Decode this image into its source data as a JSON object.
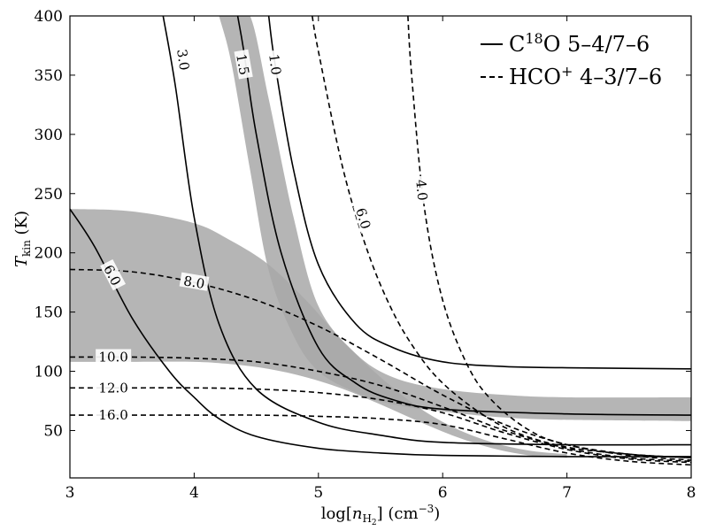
{
  "chart_data": {
    "type": "line",
    "xlabel": "log[n_H2] (cm^-3)",
    "xlabel_parts": {
      "pre": "log[",
      "var": "n",
      "sub": "H",
      "subsub": "2",
      "post": "] (cm",
      "sup": "−3",
      "end": ")"
    },
    "ylabel": "T_kin (K)",
    "ylabel_parts": {
      "var": "T",
      "sub": "kin",
      "post": " (K)"
    },
    "xlim": [
      3,
      8
    ],
    "ylim": [
      10,
      400
    ],
    "x_ticks": [
      "3",
      "4",
      "5",
      "6",
      "7",
      "8"
    ],
    "y_ticks": [
      "50",
      "100",
      "150",
      "200",
      "250",
      "300",
      "350",
      "400"
    ],
    "grid": false,
    "legend_position": "top-right",
    "legend": [
      {
        "style": "solid",
        "parts": {
          "pre": "C",
          "sup": "18",
          "post": "O 5–4/7–6"
        }
      },
      {
        "style": "dashed",
        "parts": {
          "pre": "HCO",
          "sup": "+",
          "post": " 4–3/7–6"
        }
      }
    ],
    "colors": {
      "line": "#000000",
      "band": "#a8a8a8"
    },
    "series": [
      {
        "label": "3.0",
        "style": "solid",
        "x": [
          3.75,
          3.85,
          4.0,
          4.2,
          4.5,
          5.0,
          5.5,
          6.0,
          7.0,
          8.0
        ],
        "y": [
          400,
          340,
          230,
          140,
          85,
          57,
          46,
          40,
          38,
          38
        ]
      },
      {
        "label": "1.5",
        "style": "solid",
        "x": [
          4.35,
          4.4,
          4.5,
          4.7,
          5.0,
          5.3,
          5.6,
          6.0,
          7.0,
          8.0
        ],
        "y": [
          400,
          370,
          300,
          200,
          120,
          90,
          76,
          68,
          64,
          63
        ]
      },
      {
        "label": "1.0",
        "style": "solid",
        "x": [
          4.6,
          4.65,
          4.8,
          5.0,
          5.3,
          5.6,
          6.0,
          6.5,
          7.0,
          8.0
        ],
        "y": [
          400,
          360,
          270,
          190,
          140,
          120,
          108,
          104,
          103,
          102
        ]
      },
      {
        "label": "6.0",
        "style": "solid",
        "x": [
          3.0,
          3.2,
          3.5,
          3.8,
          4.0,
          4.2,
          4.5,
          5.0,
          5.5,
          6.0,
          7.0,
          8.0
        ],
        "y": [
          237,
          205,
          145,
          100,
          78,
          60,
          45,
          35,
          31,
          29,
          28,
          28
        ]
      },
      {
        "label": "6.0",
        "style": "dashed",
        "x": [
          4.95,
          5.0,
          5.2,
          5.4,
          5.6,
          5.8,
          6.0,
          6.3,
          6.6,
          7.0,
          7.5,
          8.0
        ],
        "y": [
          400,
          370,
          270,
          200,
          150,
          115,
          90,
          65,
          48,
          36,
          30,
          27
        ]
      },
      {
        "label": "4.0",
        "style": "dashed",
        "x": [
          5.72,
          5.75,
          5.85,
          6.0,
          6.2,
          6.4,
          6.7,
          7.0,
          7.5,
          8.0
        ],
        "y": [
          400,
          350,
          240,
          160,
          105,
          75,
          50,
          38,
          30,
          27
        ]
      },
      {
        "label": "8.0",
        "style": "dashed",
        "x": [
          3.0,
          3.5,
          4.0,
          4.5,
          5.0,
          5.5,
          6.0,
          6.5,
          7.0,
          7.5,
          8.0
        ],
        "y": [
          186,
          184,
          175,
          160,
          138,
          110,
          80,
          55,
          38,
          29,
          25
        ]
      },
      {
        "label": "10.0",
        "style": "dashed",
        "x": [
          3.0,
          3.5,
          4.0,
          4.5,
          5.0,
          5.5,
          6.0,
          6.5,
          7.0,
          7.5,
          8.0
        ],
        "y": [
          112,
          112,
          111,
          108,
          100,
          88,
          70,
          50,
          35,
          27,
          24
        ]
      },
      {
        "label": "12.0",
        "style": "dashed",
        "x": [
          3.0,
          3.5,
          4.0,
          4.5,
          5.0,
          5.5,
          6.0,
          6.5,
          7.0,
          7.5,
          8.0
        ],
        "y": [
          86,
          86,
          86,
          85,
          82,
          76,
          65,
          48,
          34,
          26,
          23
        ]
      },
      {
        "label": "16.0",
        "style": "dashed",
        "x": [
          3.0,
          3.5,
          4.0,
          4.5,
          5.0,
          5.5,
          6.0,
          6.5,
          7.0,
          7.5,
          8.0
        ],
        "y": [
          63,
          63,
          63,
          63,
          62,
          60,
          55,
          43,
          31,
          24,
          21
        ]
      }
    ],
    "bands": [
      {
        "label": "C18O band",
        "x": [
          4.2,
          4.3,
          4.45,
          4.6,
          4.8,
          5.0,
          5.3,
          5.6,
          6.0,
          6.5,
          7.0,
          8.0
        ],
        "y_low": [
          400,
          360,
          270,
          185,
          130,
          100,
          82,
          72,
          66,
          61,
          59,
          58
        ],
        "y_high": [
          400,
          400,
          400,
          330,
          230,
          155,
          115,
          95,
          85,
          80,
          78,
          78
        ]
      },
      {
        "label": "HCO+ band",
        "x": [
          3.0,
          3.5,
          4.0,
          4.3,
          4.6,
          4.9,
          5.2,
          5.5,
          5.8,
          6.1,
          6.4,
          6.7,
          7.0
        ],
        "y_low": [
          108,
          108,
          108,
          106,
          102,
          95,
          85,
          72,
          58,
          45,
          35,
          29,
          27
        ],
        "y_high": [
          237,
          235,
          225,
          210,
          190,
          160,
          125,
          95,
          70,
          52,
          40,
          33,
          30
        ]
      }
    ],
    "contour_labels": [
      {
        "text": "3.0",
        "series": 0,
        "x": 3.91,
        "y": 363
      },
      {
        "text": "1.5",
        "series": 1,
        "x": 4.39,
        "y": 359
      },
      {
        "text": "1.0",
        "series": 2,
        "x": 4.65,
        "y": 359
      },
      {
        "text": "6.0",
        "series": 3,
        "x": 3.34,
        "y": 181
      },
      {
        "text": "6.0",
        "series": 4,
        "x": 5.36,
        "y": 229
      },
      {
        "text": "4.0",
        "series": 5,
        "x": 5.83,
        "y": 253
      },
      {
        "text": "8.0",
        "series": 6,
        "x": 4.0,
        "y": 175
      },
      {
        "text": "10.0",
        "series": 7,
        "x": 3.35,
        "y": 112
      },
      {
        "text": "12.0",
        "series": 8,
        "x": 3.35,
        "y": 86
      },
      {
        "text": "16.0",
        "series": 9,
        "x": 3.35,
        "y": 63
      }
    ]
  }
}
